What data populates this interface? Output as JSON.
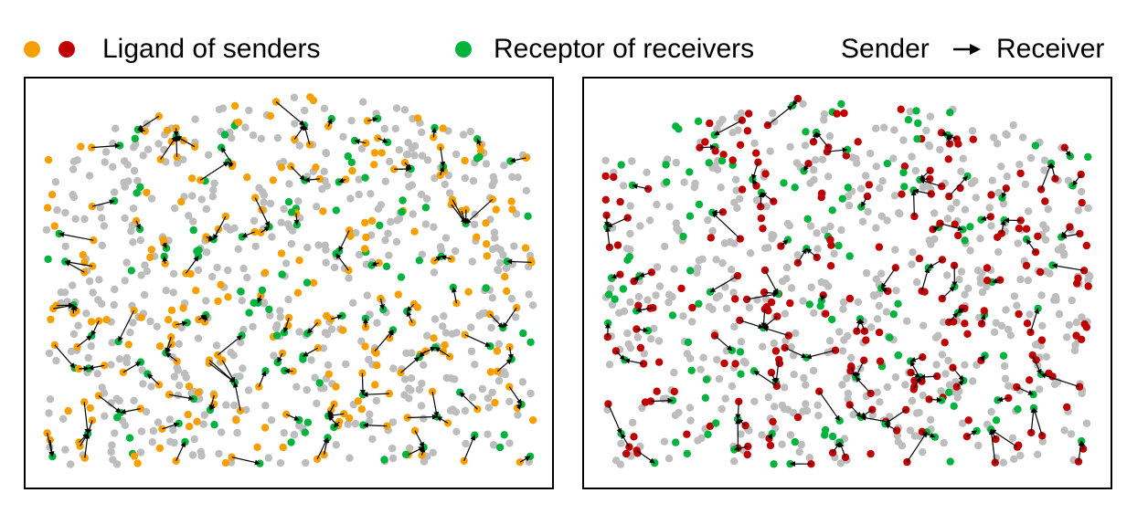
{
  "legend": {
    "ligand_label": "Ligand of senders",
    "receptor_label": "Receptor of receivers",
    "sender_label": "Sender",
    "receiver_label": "Receiver"
  },
  "colors": {
    "ligand_left": "#f5a000",
    "ligand_right": "#c00000",
    "receptor": "#00b33c",
    "background_cell": "#bdbdbd",
    "arrow": "#000000"
  },
  "chart_data": [
    {
      "type": "scatter",
      "panel": "left",
      "title": "",
      "xlabel": "",
      "ylabel": "",
      "series": [
        {
          "name": "Ligand of senders",
          "color": "#f5a000"
        },
        {
          "name": "Receptor of receivers",
          "color": "#00b33c"
        },
        {
          "name": "",
          "color": "#bdbdbd"
        }
      ],
      "arrows_label": "Sender → Receiver"
    },
    {
      "type": "scatter",
      "panel": "right",
      "title": "",
      "xlabel": "",
      "ylabel": "",
      "series": [
        {
          "name": "Ligand of senders",
          "color": "#c00000"
        },
        {
          "name": "Receptor of receivers",
          "color": "#00b33c"
        },
        {
          "name": "",
          "color": "#bdbdbd"
        }
      ],
      "arrows_label": "Sender → Receiver"
    }
  ]
}
